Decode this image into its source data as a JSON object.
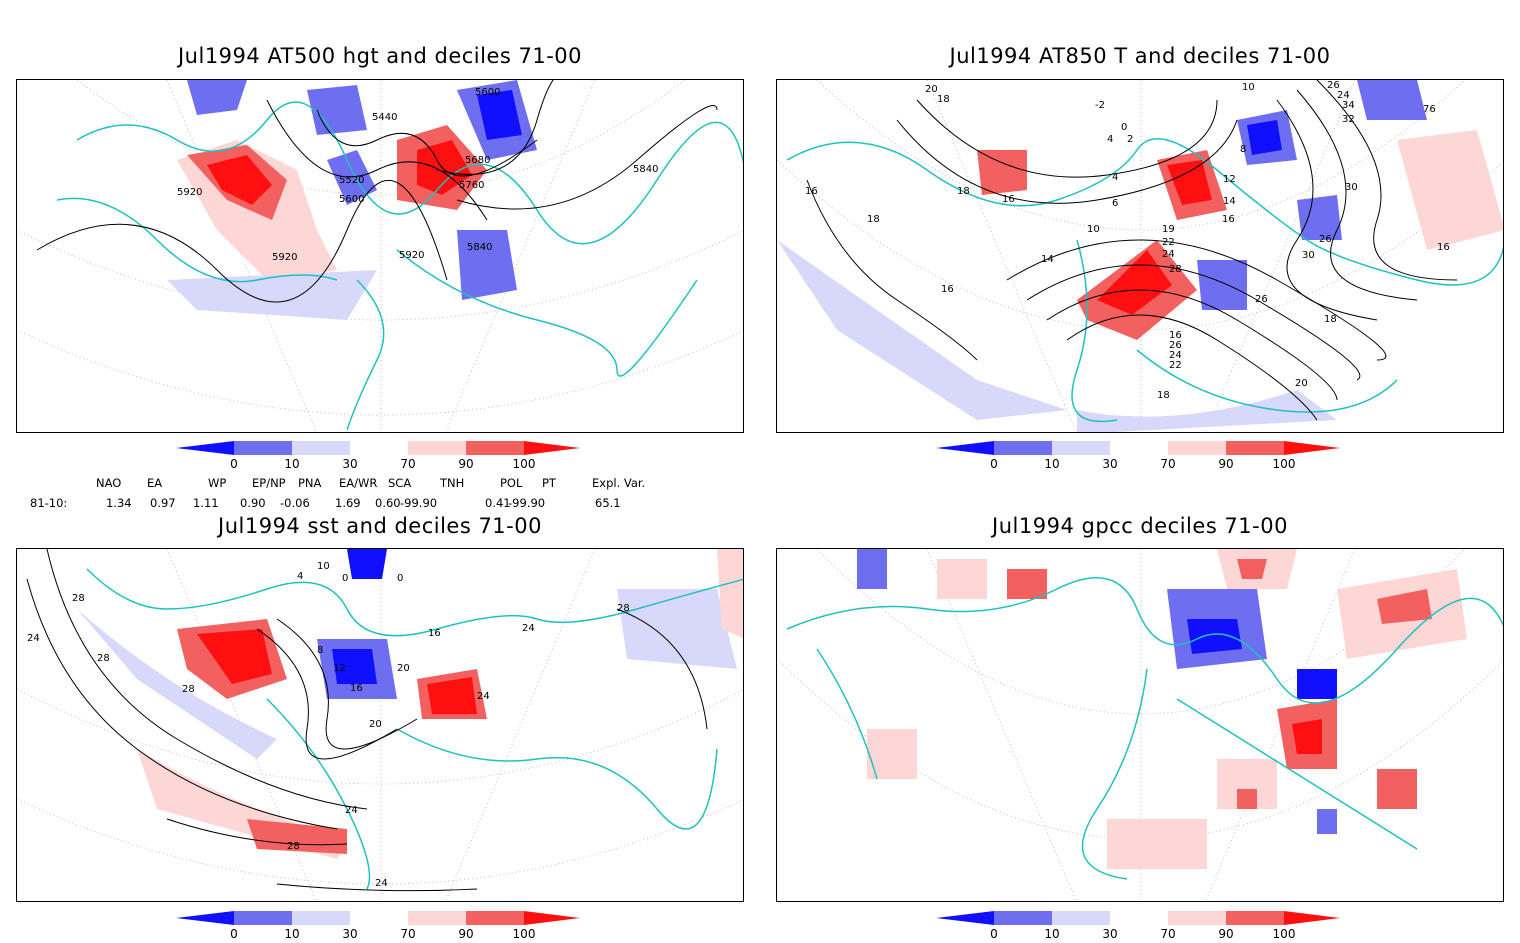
{
  "panels": [
    {
      "title": "Jul1994 AT500 hgt and deciles 71-00",
      "labels": [
        "5440",
        "5600",
        "5520",
        "5600",
        "5680",
        "5760",
        "5840",
        "5920",
        "5920",
        "5920",
        "5840"
      ]
    },
    {
      "title": "Jul1994 AT850 T and deciles 71-00",
      "labels": [
        "20",
        "18",
        "-2",
        "10",
        "26",
        "24",
        "76",
        "34",
        "32",
        "30",
        "4",
        "0",
        "2",
        "8",
        "16",
        "16",
        "18",
        "12",
        "14",
        "30",
        "26",
        "16",
        "18",
        "14",
        "10",
        "4",
        "6",
        "19",
        "22",
        "24",
        "28",
        "16",
        "26",
        "18",
        "16",
        "26",
        "24",
        "22",
        "20",
        "18",
        "16"
      ]
    },
    {
      "title": "Jul1994 sst and deciles 71-00",
      "labels": [
        "28",
        "24",
        "28",
        "28",
        "4",
        "10",
        "0",
        "0",
        "8",
        "12",
        "16",
        "20",
        "24",
        "24",
        "28",
        "20",
        "24",
        "28",
        "24",
        "16"
      ]
    },
    {
      "title": "Jul1994 gpcc deciles 71-00",
      "labels": []
    }
  ],
  "colorbar": {
    "labels": [
      "0",
      "10",
      "30",
      "70",
      "90",
      "100"
    ],
    "colors": [
      "#1010ff",
      "#6e6ef0",
      "#d8d8fa",
      "#ffffff",
      "#fdd6d6",
      "#f26060",
      "#ff1010"
    ]
  },
  "teleconnections": {
    "headers": [
      "NAO",
      "EA",
      "WP",
      "EP/NP",
      "PNA",
      "EA/WR",
      "SCA",
      "TNH",
      "POL",
      "PT",
      "Expl. Var."
    ],
    "row_label": "81-10:",
    "values": [
      "1.34",
      "0.97",
      "1.11",
      "0.90",
      "-0.06",
      "1.69",
      "0.60",
      "-99.90",
      "0.41",
      "-99.90",
      "65.1"
    ]
  }
}
